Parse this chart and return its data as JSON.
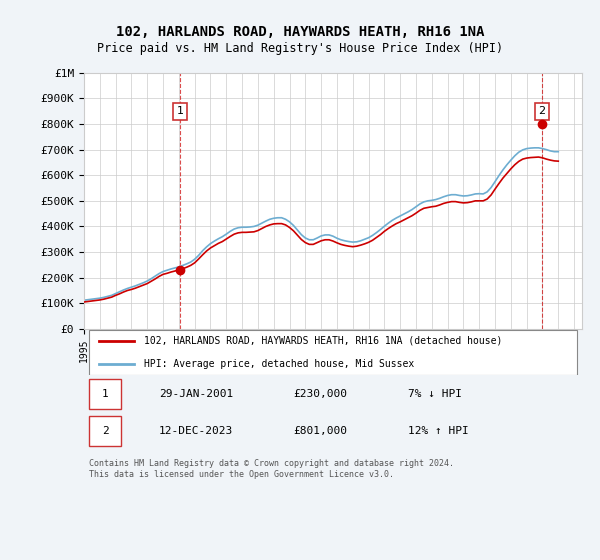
{
  "title": "102, HARLANDS ROAD, HAYWARDS HEATH, RH16 1NA",
  "subtitle": "Price paid vs. HM Land Registry's House Price Index (HPI)",
  "ylabel": "",
  "xlabel": "",
  "ylim": [
    0,
    1000000
  ],
  "yticks": [
    0,
    100000,
    200000,
    300000,
    400000,
    500000,
    600000,
    700000,
    800000,
    900000,
    1000000
  ],
  "ytick_labels": [
    "£0",
    "£100K",
    "£200K",
    "£300K",
    "£400K",
    "£500K",
    "£600K",
    "£700K",
    "£800K",
    "£900K",
    "£1M"
  ],
  "xlim_start": 1995.0,
  "xlim_end": 2026.5,
  "hpi_color": "#6dadd1",
  "price_color": "#cc0000",
  "background_color": "#f0f4f8",
  "plot_bg_color": "#ffffff",
  "legend_label_red": "102, HARLANDS ROAD, HAYWARDS HEATH, RH16 1NA (detached house)",
  "legend_label_blue": "HPI: Average price, detached house, Mid Sussex",
  "point1_label": "1",
  "point1_date": "29-JAN-2001",
  "point1_price": "£230,000",
  "point1_hpi": "7% ↓ HPI",
  "point1_x": 2001.08,
  "point1_y": 230000,
  "point2_label": "2",
  "point2_date": "12-DEC-2023",
  "point2_price": "£801,000",
  "point2_hpi": "12% ↑ HPI",
  "point2_x": 2023.95,
  "point2_y": 801000,
  "footer": "Contains HM Land Registry data © Crown copyright and database right 2024.\nThis data is licensed under the Open Government Licence v3.0.",
  "hpi_x": [
    1995.0,
    1995.25,
    1995.5,
    1995.75,
    1996.0,
    1996.25,
    1996.5,
    1996.75,
    1997.0,
    1997.25,
    1997.5,
    1997.75,
    1998.0,
    1998.25,
    1998.5,
    1998.75,
    1999.0,
    1999.25,
    1999.5,
    1999.75,
    2000.0,
    2000.25,
    2000.5,
    2000.75,
    2001.0,
    2001.25,
    2001.5,
    2001.75,
    2002.0,
    2002.25,
    2002.5,
    2002.75,
    2003.0,
    2003.25,
    2003.5,
    2003.75,
    2004.0,
    2004.25,
    2004.5,
    2004.75,
    2005.0,
    2005.25,
    2005.5,
    2005.75,
    2006.0,
    2006.25,
    2006.5,
    2006.75,
    2007.0,
    2007.25,
    2007.5,
    2007.75,
    2008.0,
    2008.25,
    2008.5,
    2008.75,
    2009.0,
    2009.25,
    2009.5,
    2009.75,
    2010.0,
    2010.25,
    2010.5,
    2010.75,
    2011.0,
    2011.25,
    2011.5,
    2011.75,
    2012.0,
    2012.25,
    2012.5,
    2012.75,
    2013.0,
    2013.25,
    2013.5,
    2013.75,
    2014.0,
    2014.25,
    2014.5,
    2014.75,
    2015.0,
    2015.25,
    2015.5,
    2015.75,
    2016.0,
    2016.25,
    2016.5,
    2016.75,
    2017.0,
    2017.25,
    2017.5,
    2017.75,
    2018.0,
    2018.25,
    2018.5,
    2018.75,
    2019.0,
    2019.25,
    2019.5,
    2019.75,
    2020.0,
    2020.25,
    2020.5,
    2020.75,
    2021.0,
    2021.25,
    2021.5,
    2021.75,
    2022.0,
    2022.25,
    2022.5,
    2022.75,
    2023.0,
    2023.25,
    2023.5,
    2023.75,
    2024.0,
    2024.25,
    2024.5,
    2024.75,
    2025.0
  ],
  "hpi_y": [
    112000,
    114000,
    116000,
    118000,
    120000,
    123000,
    127000,
    131000,
    138000,
    145000,
    152000,
    158000,
    163000,
    168000,
    174000,
    180000,
    187000,
    196000,
    206000,
    216000,
    224000,
    229000,
    234000,
    238000,
    242000,
    248000,
    254000,
    261000,
    272000,
    287000,
    305000,
    320000,
    333000,
    343000,
    352000,
    360000,
    370000,
    381000,
    390000,
    395000,
    397000,
    397000,
    398000,
    400000,
    405000,
    413000,
    421000,
    428000,
    432000,
    434000,
    434000,
    428000,
    418000,
    404000,
    386000,
    368000,
    355000,
    348000,
    348000,
    355000,
    363000,
    367000,
    367000,
    362000,
    354000,
    348000,
    344000,
    341000,
    339000,
    340000,
    344000,
    350000,
    356000,
    365000,
    376000,
    388000,
    401000,
    413000,
    424000,
    433000,
    441000,
    449000,
    457000,
    466000,
    477000,
    488000,
    496000,
    500000,
    502000,
    505000,
    510000,
    516000,
    521000,
    524000,
    524000,
    521000,
    519000,
    520000,
    523000,
    527000,
    528000,
    527000,
    535000,
    552000,
    575000,
    599000,
    621000,
    641000,
    659000,
    676000,
    690000,
    699000,
    704000,
    706000,
    707000,
    707000,
    704000,
    700000,
    695000,
    692000,
    692000
  ],
  "price_x": [
    1995.0,
    1995.25,
    1995.5,
    1995.75,
    1996.0,
    1996.25,
    1996.5,
    1996.75,
    1997.0,
    1997.25,
    1997.5,
    1997.75,
    1998.0,
    1998.25,
    1998.5,
    1998.75,
    1999.0,
    1999.25,
    1999.5,
    1999.75,
    2000.0,
    2000.25,
    2000.5,
    2000.75,
    2001.0,
    2001.25,
    2001.5,
    2001.75,
    2002.0,
    2002.25,
    2002.5,
    2002.75,
    2003.0,
    2003.25,
    2003.5,
    2003.75,
    2004.0,
    2004.25,
    2004.5,
    2004.75,
    2005.0,
    2005.25,
    2005.5,
    2005.75,
    2006.0,
    2006.25,
    2006.5,
    2006.75,
    2007.0,
    2007.25,
    2007.5,
    2007.75,
    2008.0,
    2008.25,
    2008.5,
    2008.75,
    2009.0,
    2009.25,
    2009.5,
    2009.75,
    2010.0,
    2010.25,
    2010.5,
    2010.75,
    2011.0,
    2011.25,
    2011.5,
    2011.75,
    2012.0,
    2012.25,
    2012.5,
    2012.75,
    2013.0,
    2013.25,
    2013.5,
    2013.75,
    2014.0,
    2014.25,
    2014.5,
    2014.75,
    2015.0,
    2015.25,
    2015.5,
    2015.75,
    2016.0,
    2016.25,
    2016.5,
    2016.75,
    2017.0,
    2017.25,
    2017.5,
    2017.75,
    2018.0,
    2018.25,
    2018.5,
    2018.75,
    2019.0,
    2019.25,
    2019.5,
    2019.75,
    2020.0,
    2020.25,
    2020.5,
    2020.75,
    2021.0,
    2021.25,
    2021.5,
    2021.75,
    2022.0,
    2022.25,
    2022.5,
    2022.75,
    2023.0,
    2023.25,
    2023.5,
    2023.75,
    2024.0,
    2024.25,
    2024.5,
    2024.75,
    2025.0
  ],
  "price_y": [
    105000,
    107000,
    109000,
    111000,
    113000,
    116000,
    120000,
    124000,
    131000,
    137000,
    144000,
    150000,
    154000,
    159000,
    165000,
    171000,
    177000,
    186000,
    195000,
    205000,
    213000,
    217000,
    222000,
    226000,
    230000,
    235000,
    241000,
    248000,
    258000,
    273000,
    289000,
    304000,
    316000,
    325000,
    334000,
    341000,
    351000,
    361000,
    370000,
    375000,
    377000,
    377000,
    378000,
    379000,
    384000,
    392000,
    400000,
    406000,
    410000,
    411000,
    411000,
    406000,
    396000,
    383000,
    366000,
    349000,
    337000,
    330000,
    330000,
    337000,
    344000,
    348000,
    348000,
    343000,
    336000,
    330000,
    326000,
    323000,
    321000,
    323000,
    327000,
    332000,
    338000,
    346000,
    357000,
    368000,
    381000,
    392000,
    402000,
    411000,
    418000,
    426000,
    434000,
    442000,
    452000,
    463000,
    471000,
    474000,
    477000,
    479000,
    484000,
    490000,
    494000,
    497000,
    497000,
    494000,
    492000,
    493000,
    496000,
    500000,
    500000,
    500000,
    507000,
    523000,
    546000,
    568000,
    589000,
    607000,
    625000,
    641000,
    654000,
    663000,
    667000,
    669000,
    670000,
    671000,
    668000,
    663000,
    659000,
    656000,
    655000
  ]
}
